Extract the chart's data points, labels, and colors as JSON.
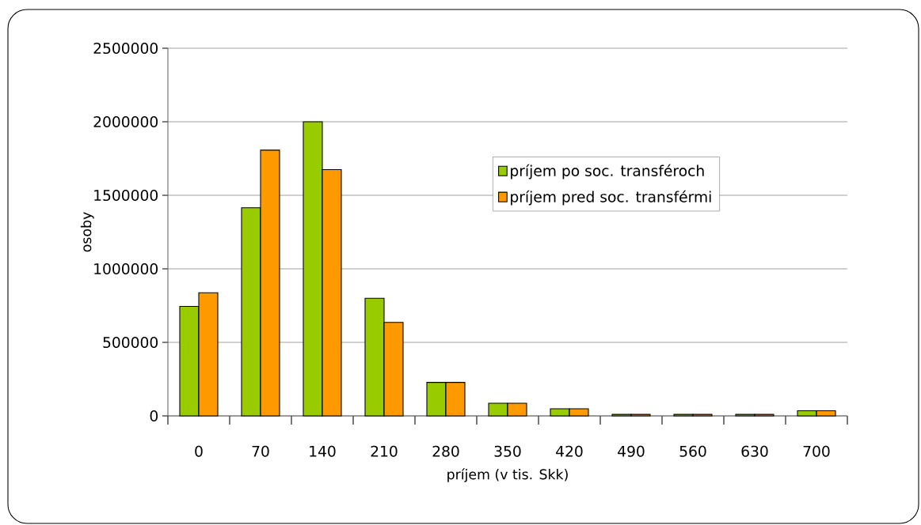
{
  "chart_data": {
    "type": "bar",
    "xlabel": "príjem (v tis. Skk)",
    "ylabel": "osoby",
    "categories": [
      "0",
      "70",
      "140",
      "210",
      "280",
      "350",
      "420",
      "490",
      "560",
      "630",
      "700"
    ],
    "series": [
      {
        "name": "príjem po soc. transféroch",
        "color": "#99cc00",
        "values": [
          745000,
          1415000,
          2000000,
          800000,
          228000,
          86000,
          48000,
          10000,
          10000,
          10000,
          35000
        ]
      },
      {
        "name": "príjem pred soc. transférmi",
        "color": "#ff9900",
        "values": [
          837000,
          1807000,
          1675000,
          636000,
          228000,
          86000,
          48000,
          10000,
          10000,
          10000,
          35000
        ]
      }
    ],
    "ylim": [
      0,
      2500000
    ],
    "yticks": [
      0,
      500000,
      1000000,
      1500000,
      2000000,
      2500000
    ],
    "grid": "y",
    "legend": "top right"
  }
}
